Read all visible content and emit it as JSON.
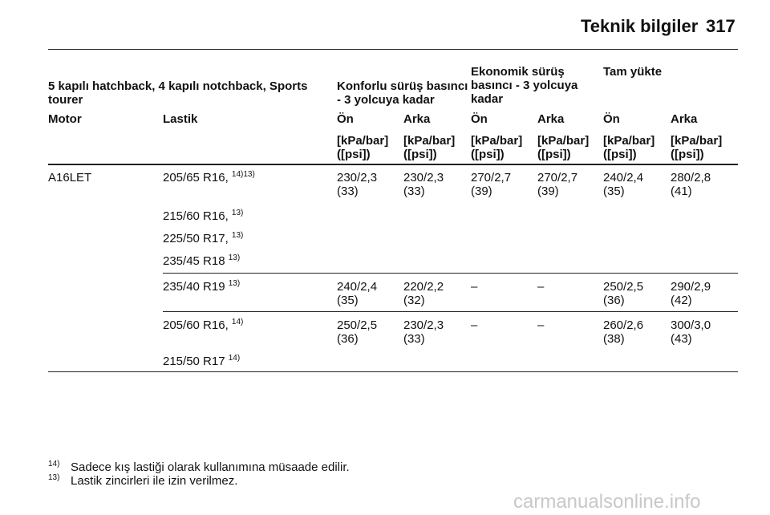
{
  "header": {
    "title": "Teknik bilgiler",
    "page": "317"
  },
  "table": {
    "group_headers": [
      "5 kapılı hatchback, 4 kapılı notchback, Sports tourer",
      "Konforlu sürüş basıncı - 3 yolcuya kadar",
      "Ekonomik sürüş basıncı - 3 yolcuya kadar",
      "Tam yükte"
    ],
    "column_headers": [
      "Motor",
      "Lastik",
      "Ön",
      "Arka",
      "Ön",
      "Arka",
      "Ön",
      "Arka"
    ],
    "unit_headers": [
      [
        "[kPa/bar]",
        "([psi])"
      ],
      [
        "[kPa/bar]",
        "([psi])"
      ],
      [
        "[kPa/bar]",
        "([psi])"
      ],
      [
        "[kPa/bar]",
        "([psi])"
      ],
      [
        "[kPa/bar]",
        "([psi])"
      ],
      [
        "[kPa/bar]",
        "([psi])"
      ]
    ],
    "rows": [
      {
        "motor": "A16LET",
        "tire": "205/65 R16,",
        "note": "14)13)",
        "values": [
          [
            "230/2,3",
            "(33)"
          ],
          [
            "230/2,3",
            "(33)"
          ],
          [
            "270/2,7",
            "(39)"
          ],
          [
            "270/2,7",
            "(39)"
          ],
          [
            "240/2,4",
            "(35)"
          ],
          [
            "280/2,8",
            "(41)"
          ]
        ]
      },
      {
        "tire": "215/60 R16,",
        "note": "13)"
      },
      {
        "tire": "225/50 R17,",
        "note": "13)"
      },
      {
        "tire": "235/45 R18",
        "note": "13)"
      },
      {
        "tire": "235/40 R19",
        "note": "13)",
        "values": [
          [
            "240/2,4",
            "(35)"
          ],
          [
            "220/2,2",
            "(32)"
          ],
          [
            "–"
          ],
          [
            "–"
          ],
          [
            "250/2,5",
            "(36)"
          ],
          [
            "290/2,9",
            "(42)"
          ]
        ]
      },
      {
        "tire": "205/60 R16,",
        "note": "14)",
        "values": [
          [
            "250/2,5",
            "(36)"
          ],
          [
            "230/2,3",
            "(33)"
          ],
          [
            "–"
          ],
          [
            "–"
          ],
          [
            "260/2,6",
            "(38)"
          ],
          [
            "300/3,0",
            "(43)"
          ]
        ]
      },
      {
        "tire": "215/50 R17",
        "note": "14)"
      }
    ]
  },
  "footnotes": [
    {
      "marker": "14)",
      "text": "Sadece kış lastiği olarak kullanımına müsaade edilir."
    },
    {
      "marker": "13)",
      "text": "Lastik zincirleri ile izin verilmez."
    }
  ],
  "watermark": "carmanualsonline.info"
}
